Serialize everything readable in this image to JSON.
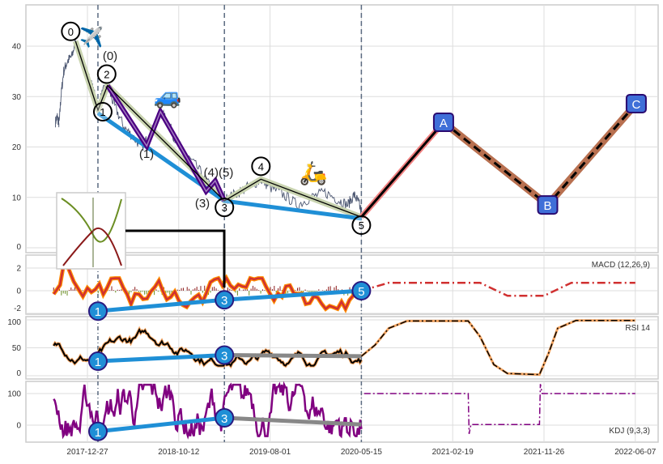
{
  "chart_data": {
    "type": "line",
    "title": "",
    "x_tick_labels": [
      "2017-12-27",
      "2018-10-12",
      "2019-08-01",
      "2020-05-15",
      "2021-02-19",
      "2021-11-26",
      "2022-06-07"
    ],
    "x_unit_note": "x values are in tick-index units (0 = 2017-12-27, 6 = 2022-06-07)",
    "grid": true,
    "wave_markers_x": [
      0.115,
      1.5,
      3.0
    ],
    "main": {
      "ylim": [
        -1,
        47
      ],
      "yticks": [
        0,
        10,
        20,
        30,
        40
      ],
      "price": [
        [
          -0.35,
          25
        ],
        [
          -0.33,
          26
        ],
        [
          -0.31,
          24.5
        ],
        [
          -0.29,
          30
        ],
        [
          -0.26,
          35
        ],
        [
          -0.22,
          37
        ],
        [
          -0.17,
          38
        ],
        [
          -0.13,
          41
        ],
        [
          -0.08,
          38
        ],
        [
          -0.03,
          36
        ],
        [
          0.05,
          32
        ],
        [
          0.115,
          28
        ],
        [
          0.17,
          31
        ],
        [
          0.22,
          32
        ],
        [
          0.3,
          28
        ],
        [
          0.4,
          24
        ],
        [
          0.5,
          22
        ],
        [
          0.6,
          20
        ],
        [
          0.7,
          23
        ],
        [
          0.8,
          27
        ],
        [
          0.88,
          25
        ],
        [
          0.95,
          22
        ],
        [
          1.05,
          19
        ],
        [
          1.2,
          16
        ],
        [
          1.35,
          12
        ],
        [
          1.45,
          10
        ],
        [
          1.5,
          9.5
        ],
        [
          1.6,
          10.5
        ],
        [
          1.75,
          12
        ],
        [
          1.9,
          13.5
        ],
        [
          2.0,
          12
        ],
        [
          2.15,
          10.5
        ],
        [
          2.3,
          8.5
        ],
        [
          2.45,
          10
        ],
        [
          2.6,
          11
        ],
        [
          2.75,
          9.5
        ],
        [
          2.85,
          8.5
        ],
        [
          2.92,
          10.5
        ],
        [
          2.97,
          9
        ],
        [
          3.0,
          7
        ]
      ],
      "wave_line": {
        "labels": [
          "0",
          "1",
          "2",
          "3",
          "4",
          "5"
        ],
        "points": [
          [
            -0.13,
            41
          ],
          [
            0.115,
            27.3
          ],
          [
            0.22,
            32.2
          ],
          [
            1.5,
            9.3
          ],
          [
            1.9,
            13.6
          ],
          [
            3.0,
            6.1
          ]
        ]
      },
      "trend_line": [
        [
          0.115,
          26.7
        ],
        [
          1.5,
          9.3
        ],
        [
          3.0,
          5.8
        ]
      ],
      "sub_waves": {
        "labels": [
          "(0)",
          "(1)",
          "(3)",
          "(4)(5)"
        ],
        "points": [
          [
            0.22,
            32.2
          ],
          [
            0.65,
            20.2
          ],
          [
            0.8,
            27
          ],
          [
            1.3,
            11.2
          ],
          [
            1.4,
            13.3
          ],
          [
            1.5,
            9.3
          ]
        ]
      },
      "projection": {
        "labels": [
          "A",
          "B",
          "C"
        ],
        "points": [
          [
            3.0,
            6.1
          ],
          [
            3.9,
            24.9
          ],
          [
            5.04,
            8.5
          ],
          [
            6.01,
            28.6
          ]
        ]
      },
      "emojis": [
        "✈️",
        "🚙",
        "🛵"
      ]
    },
    "macd": {
      "label": "MACD (12,26,9)",
      "ylim": [
        -2.1,
        3.3
      ],
      "yticks": [
        -2,
        0,
        2
      ],
      "trend_points": {
        "labels": [
          "1",
          "3",
          "5"
        ],
        "values": [
          [
            0.115,
            -1.8
          ],
          [
            1.5,
            -0.8
          ],
          [
            3.0,
            0
          ]
        ]
      },
      "projection": [
        [
          3.0,
          0
        ],
        [
          3.3,
          0.7
        ],
        [
          4.3,
          0.7
        ],
        [
          4.6,
          -0.45
        ],
        [
          5.0,
          -0.45
        ],
        [
          5.3,
          0.7
        ],
        [
          6.0,
          0.7
        ]
      ]
    },
    "rsi": {
      "label": "RSI 14",
      "ylim": [
        -5,
        105
      ],
      "yticks": [
        0,
        50,
        100
      ],
      "trend_points": {
        "labels": [
          "1",
          "3"
        ],
        "values": [
          [
            0.115,
            26
          ],
          [
            1.5,
            37
          ]
        ]
      },
      "gray_line": [
        [
          1.5,
          37
        ],
        [
          3.0,
          35
        ]
      ],
      "projection": [
        [
          3.0,
          35
        ],
        [
          3.15,
          55
        ],
        [
          3.3,
          85
        ],
        [
          3.5,
          98
        ],
        [
          4.17,
          98
        ],
        [
          4.3,
          70
        ],
        [
          4.45,
          20
        ],
        [
          4.6,
          4
        ],
        [
          4.95,
          2
        ],
        [
          5.05,
          40
        ],
        [
          5.15,
          85
        ],
        [
          5.35,
          99
        ],
        [
          6.0,
          99
        ]
      ]
    },
    "kdj": {
      "label": "KDJ (9,3,3)",
      "ylim": [
        -50,
        140
      ],
      "yticks": [
        0,
        100
      ],
      "trend_points": {
        "labels": [
          "1",
          "3"
        ],
        "values": [
          [
            0.115,
            -20
          ],
          [
            1.5,
            23
          ]
        ]
      },
      "gray_line": [
        [
          1.5,
          23
        ],
        [
          3.0,
          2
        ]
      ],
      "projection": [
        [
          3.03,
          100
        ],
        [
          4.17,
          100
        ],
        [
          4.18,
          -28
        ],
        [
          4.2,
          2
        ],
        [
          4.95,
          2
        ],
        [
          4.96,
          130
        ],
        [
          4.98,
          100
        ],
        [
          6.0,
          100
        ]
      ]
    }
  }
}
